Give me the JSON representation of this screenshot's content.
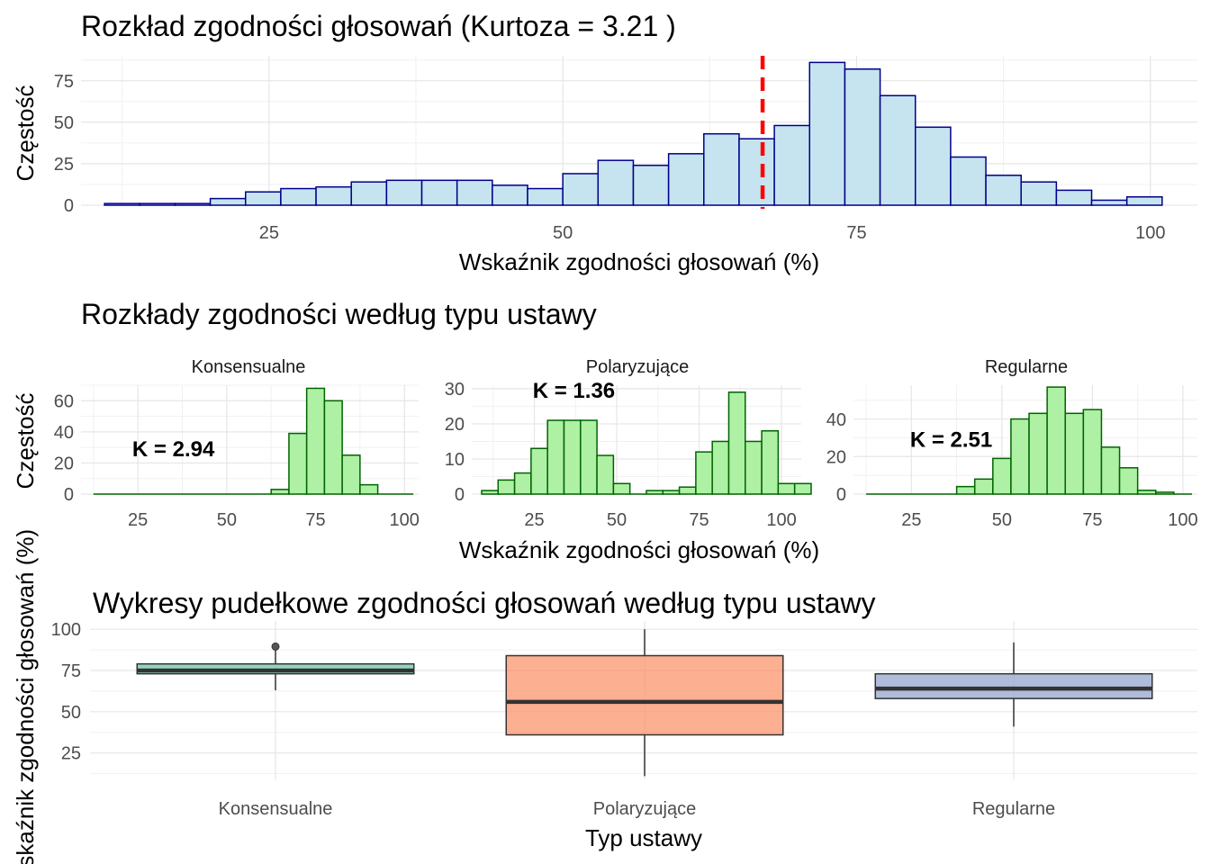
{
  "chart_data": [
    {
      "type": "histogram",
      "title": "Rozkład zgodności głosowań (Kurtoza = 3.21 )",
      "xlabel": "Wskaźnik zgodności głosowań (%)",
      "ylabel": "Częstość",
      "xlim": [
        9,
        104
      ],
      "ylim": [
        0,
        90
      ],
      "xticks": [
        25,
        50,
        75,
        100
      ],
      "yticks": [
        0,
        25,
        50,
        75
      ],
      "grid": true,
      "bar_fill": "#c6e4ef",
      "bar_stroke": "#00008b",
      "ref_line": {
        "x": 67,
        "color": "#ff0000",
        "style": "dashed"
      },
      "bins": [
        {
          "x0": 11.0,
          "x1": 14.0,
          "y": 1
        },
        {
          "x0": 14.0,
          "x1": 17.0,
          "y": 1
        },
        {
          "x0": 17.0,
          "x1": 20.0,
          "y": 1
        },
        {
          "x0": 20.0,
          "x1": 23.0,
          "y": 4
        },
        {
          "x0": 23.0,
          "x1": 26.0,
          "y": 8
        },
        {
          "x0": 26.0,
          "x1": 29.0,
          "y": 10
        },
        {
          "x0": 29.0,
          "x1": 32.0,
          "y": 11
        },
        {
          "x0": 32.0,
          "x1": 35.0,
          "y": 14
        },
        {
          "x0": 35.0,
          "x1": 38.0,
          "y": 15
        },
        {
          "x0": 38.0,
          "x1": 41.0,
          "y": 15
        },
        {
          "x0": 41.0,
          "x1": 44.0,
          "y": 15
        },
        {
          "x0": 44.0,
          "x1": 47.0,
          "y": 12
        },
        {
          "x0": 47.0,
          "x1": 50.0,
          "y": 10
        },
        {
          "x0": 50.0,
          "x1": 53.0,
          "y": 19
        },
        {
          "x0": 53.0,
          "x1": 56.0,
          "y": 27
        },
        {
          "x0": 56.0,
          "x1": 59.0,
          "y": 24
        },
        {
          "x0": 59.0,
          "x1": 62.0,
          "y": 31
        },
        {
          "x0": 62.0,
          "x1": 65.0,
          "y": 43
        },
        {
          "x0": 65.0,
          "x1": 68.0,
          "y": 40
        },
        {
          "x0": 68.0,
          "x1": 71.0,
          "y": 48
        },
        {
          "x0": 71.0,
          "x1": 74.0,
          "y": 86
        },
        {
          "x0": 74.0,
          "x1": 77.0,
          "y": 82
        },
        {
          "x0": 77.0,
          "x1": 80.0,
          "y": 66
        },
        {
          "x0": 80.0,
          "x1": 83.0,
          "y": 47
        },
        {
          "x0": 83.0,
          "x1": 86.0,
          "y": 29
        },
        {
          "x0": 86.0,
          "x1": 89.0,
          "y": 18
        },
        {
          "x0": 89.0,
          "x1": 92.0,
          "y": 14
        },
        {
          "x0": 92.0,
          "x1": 95.0,
          "y": 9
        },
        {
          "x0": 95.0,
          "x1": 98.0,
          "y": 3
        },
        {
          "x0": 98.0,
          "x1": 101.0,
          "y": 5
        }
      ]
    },
    {
      "type": "histogram-facets",
      "title": "Rozkłady zgodności według typu ustawy",
      "xlabel": "Wskaźnik zgodności głosowań (%)",
      "ylabel": "Częstość",
      "grid": true,
      "bar_fill": "#aef0a4",
      "bar_stroke": "#006400",
      "facets": [
        {
          "name": "Konsensualne",
          "annotation": "K = 2.94",
          "annotation_pos": [
            35,
            29
          ],
          "xlim": [
            9,
            104
          ],
          "ylim": [
            0,
            70
          ],
          "xticks": [
            25,
            50,
            75,
            100
          ],
          "yticks": [
            0,
            20,
            40,
            60
          ],
          "bins": [
            {
              "x0": 12.5,
              "x1": 62.5,
              "y": 0
            },
            {
              "x0": 62.5,
              "x1": 67.5,
              "y": 3
            },
            {
              "x0": 67.5,
              "x1": 72.5,
              "y": 39
            },
            {
              "x0": 72.5,
              "x1": 77.5,
              "y": 68
            },
            {
              "x0": 77.5,
              "x1": 82.5,
              "y": 60
            },
            {
              "x0": 82.5,
              "x1": 87.5,
              "y": 25
            },
            {
              "x0": 87.5,
              "x1": 92.5,
              "y": 6
            },
            {
              "x0": 92.5,
              "x1": 102.5,
              "y": 0
            }
          ]
        },
        {
          "name": "Polaryzujące",
          "annotation": "K = 1.36",
          "annotation_pos": [
            37,
            29.5
          ],
          "xlim": [
            6,
            106
          ],
          "ylim": [
            0,
            31
          ],
          "xticks": [
            25,
            50,
            75,
            100
          ],
          "yticks": [
            0,
            10,
            20,
            30
          ],
          "bins": [
            {
              "x0": 9.0,
              "x1": 14.0,
              "y": 1
            },
            {
              "x0": 14.0,
              "x1": 19.0,
              "y": 4
            },
            {
              "x0": 19.0,
              "x1": 24.0,
              "y": 6
            },
            {
              "x0": 24.0,
              "x1": 29.0,
              "y": 13
            },
            {
              "x0": 29.0,
              "x1": 34.0,
              "y": 21
            },
            {
              "x0": 34.0,
              "x1": 39.0,
              "y": 21
            },
            {
              "x0": 39.0,
              "x1": 44.0,
              "y": 21
            },
            {
              "x0": 44.0,
              "x1": 49.0,
              "y": 11
            },
            {
              "x0": 49.0,
              "x1": 54.0,
              "y": 3
            },
            {
              "x0": 54.0,
              "x1": 59.0,
              "y": 0
            },
            {
              "x0": 59.0,
              "x1": 64.0,
              "y": 1
            },
            {
              "x0": 64.0,
              "x1": 69.0,
              "y": 1
            },
            {
              "x0": 69.0,
              "x1": 74.0,
              "y": 2
            },
            {
              "x0": 74.0,
              "x1": 79.0,
              "y": 12
            },
            {
              "x0": 79.0,
              "x1": 84.0,
              "y": 15
            },
            {
              "x0": 84.0,
              "x1": 89.0,
              "y": 29
            },
            {
              "x0": 89.0,
              "x1": 94.0,
              "y": 15
            },
            {
              "x0": 94.0,
              "x1": 99.0,
              "y": 18
            },
            {
              "x0": 99.0,
              "x1": 104.0,
              "y": 3
            },
            {
              "x0": 104.0,
              "x1": 109.0,
              "y": 3
            }
          ]
        },
        {
          "name": "Regularne",
          "annotation": "K = 2.51",
          "annotation_pos": [
            36,
            29
          ],
          "xlim": [
            9,
            104
          ],
          "ylim": [
            0,
            58
          ],
          "xticks": [
            25,
            50,
            75,
            100
          ],
          "yticks": [
            0,
            20,
            40
          ],
          "bins": [
            {
              "x0": 12.5,
              "x1": 37.5,
              "y": 0
            },
            {
              "x0": 37.5,
              "x1": 42.5,
              "y": 4
            },
            {
              "x0": 42.5,
              "x1": 47.5,
              "y": 8
            },
            {
              "x0": 47.5,
              "x1": 52.5,
              "y": 19
            },
            {
              "x0": 52.5,
              "x1": 57.5,
              "y": 40
            },
            {
              "x0": 57.5,
              "x1": 62.5,
              "y": 43
            },
            {
              "x0": 62.5,
              "x1": 67.5,
              "y": 57
            },
            {
              "x0": 67.5,
              "x1": 72.5,
              "y": 43
            },
            {
              "x0": 72.5,
              "x1": 77.5,
              "y": 45
            },
            {
              "x0": 77.5,
              "x1": 82.5,
              "y": 25
            },
            {
              "x0": 82.5,
              "x1": 87.5,
              "y": 14
            },
            {
              "x0": 87.5,
              "x1": 92.5,
              "y": 2
            },
            {
              "x0": 92.5,
              "x1": 97.5,
              "y": 1
            },
            {
              "x0": 97.5,
              "x1": 102.5,
              "y": 0
            }
          ]
        }
      ]
    },
    {
      "type": "boxplot",
      "title": "Wykresy pudełkowe zgodności głosowań według typu ustawy",
      "xlabel": "Typ ustawy",
      "ylabel": "Wskaźnik zgodności głosowań (%)",
      "ylim": [
        9,
        105
      ],
      "yticks": [
        25,
        50,
        75,
        100
      ],
      "grid": true,
      "categories": [
        "Konsensualne",
        "Polaryzujące",
        "Regularne"
      ],
      "boxes": [
        {
          "name": "Konsensualne",
          "whisker_low": 63,
          "q1": 73,
          "median": 75,
          "q3": 79,
          "whisker_high": 89,
          "outliers": [
            89.5
          ],
          "fill": "#66c2a5"
        },
        {
          "name": "Polaryzujące",
          "whisker_low": 11,
          "q1": 36,
          "median": 56,
          "q3": 84,
          "whisker_high": 100,
          "outliers": [],
          "fill": "#fc8d62"
        },
        {
          "name": "Regularne",
          "whisker_low": 41,
          "q1": 58,
          "median": 64,
          "q3": 73,
          "whisker_high": 92,
          "outliers": [],
          "fill": "#8da0cb"
        }
      ]
    }
  ]
}
